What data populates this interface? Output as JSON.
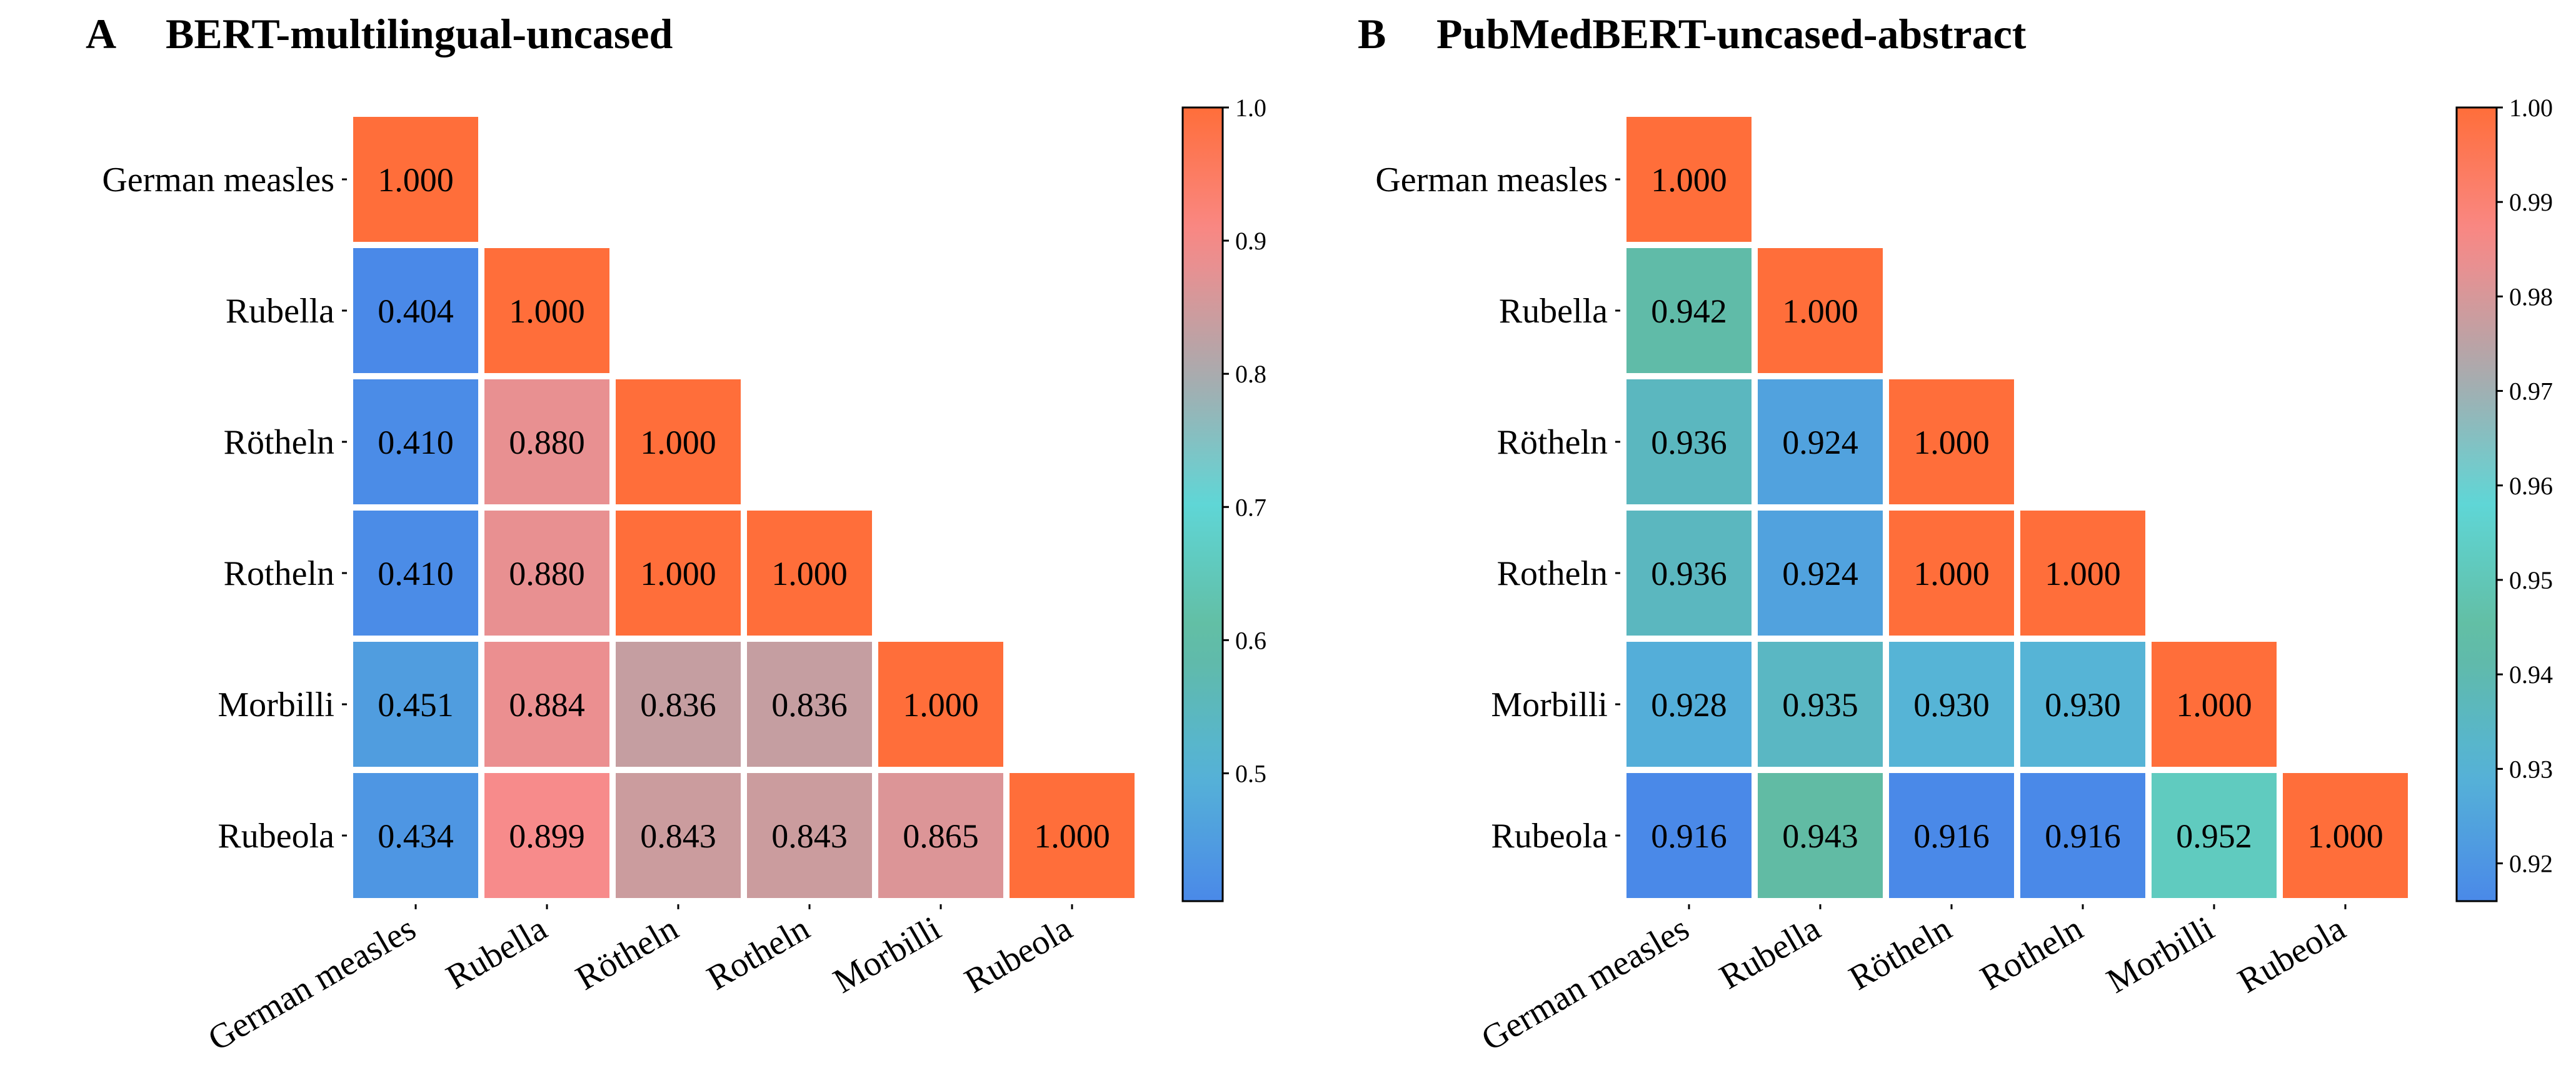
{
  "chart_data": [
    {
      "type": "heatmap",
      "panel": "A",
      "title": "BERT-multilingual-uncased",
      "categories": [
        "German measles",
        "Rubella",
        "Rötheln",
        "Rotheln",
        "Morbilli",
        "Rubeola"
      ],
      "matrix": [
        [
          1.0
        ],
        [
          0.404,
          1.0
        ],
        [
          0.41,
          0.88,
          1.0
        ],
        [
          0.41,
          0.88,
          1.0,
          1.0
        ],
        [
          0.451,
          0.884,
          0.836,
          0.836,
          1.0
        ],
        [
          0.434,
          0.899,
          0.843,
          0.843,
          0.865,
          1.0
        ]
      ],
      "colorbar": {
        "min": 0.404,
        "max": 1.0,
        "ticks": [
          "0.5",
          "0.6",
          "0.7",
          "0.8",
          "0.9",
          "1.0"
        ]
      }
    },
    {
      "type": "heatmap",
      "panel": "B",
      "title": "PubMedBERT-uncased-abstract",
      "categories": [
        "German measles",
        "Rubella",
        "Rötheln",
        "Rotheln",
        "Morbilli",
        "Rubeola"
      ],
      "matrix": [
        [
          1.0
        ],
        [
          0.942,
          1.0
        ],
        [
          0.936,
          0.924,
          1.0
        ],
        [
          0.936,
          0.924,
          1.0,
          1.0
        ],
        [
          0.928,
          0.935,
          0.93,
          0.93,
          1.0
        ],
        [
          0.916,
          0.943,
          0.916,
          0.916,
          0.952,
          1.0
        ]
      ],
      "colorbar": {
        "min": 0.916,
        "max": 1.0,
        "ticks": [
          "0.92",
          "0.93",
          "0.94",
          "0.95",
          "0.96",
          "0.97",
          "0.98",
          "0.99",
          "1.00"
        ]
      }
    }
  ],
  "colormap": [
    "#4a89e8",
    "#56b4d6",
    "#62bca0",
    "#5fd6d6",
    "#aaa9ad",
    "#f88a8a",
    "#ff6e3a"
  ]
}
